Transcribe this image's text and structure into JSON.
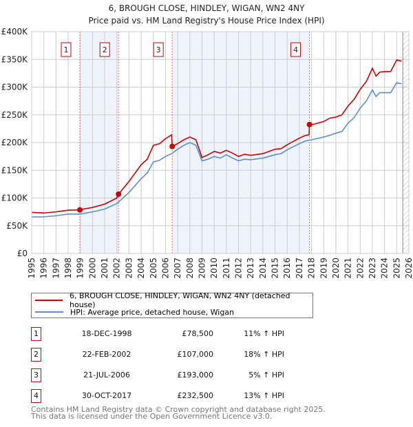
{
  "chart_data": {
    "type": "line",
    "title": "6, BROUGH CLOSE, HINDLEY, WIGAN, WN2 4NY",
    "subtitle": "Price paid vs. HM Land Registry's House Price Index (HPI)",
    "xlim": [
      1995,
      2026
    ],
    "ylim": [
      0,
      400000
    ],
    "x_ticks": [
      "1995",
      "1996",
      "1997",
      "1998",
      "1999",
      "2000",
      "2001",
      "2002",
      "2003",
      "2004",
      "2005",
      "2006",
      "2007",
      "2008",
      "2009",
      "2010",
      "2011",
      "2012",
      "2013",
      "2014",
      "2015",
      "2016",
      "2017",
      "2018",
      "2019",
      "2020",
      "2021",
      "2022",
      "2023",
      "2024",
      "2025",
      "2026"
    ],
    "y_ticks": [
      {
        "v": 0,
        "label": "£0"
      },
      {
        "v": 50000,
        "label": "£50K"
      },
      {
        "v": 100000,
        "label": "£100K"
      },
      {
        "v": 150000,
        "label": "£150K"
      },
      {
        "v": 200000,
        "label": "£200K"
      },
      {
        "v": 250000,
        "label": "£250K"
      },
      {
        "v": 300000,
        "label": "£300K"
      },
      {
        "v": 350000,
        "label": "£350K"
      },
      {
        "v": 400000,
        "label": "£400K"
      }
    ],
    "grid": true,
    "series": [
      {
        "name": "6, BROUGH CLOSE, HINDLEY, WIGAN, WN2 4NY (detached house)",
        "color": "#cc0000",
        "x": [
          1995,
          1996,
          1997,
          1998,
          1998.96,
          1999,
          2000,
          2001,
          2002,
          2002.14,
          2003,
          2004,
          2004.5,
          2005,
          2005.5,
          2006,
          2006.5,
          2006.55,
          2007,
          2007.5,
          2008,
          2008.5,
          2009,
          2009.5,
          2010,
          2010.5,
          2011,
          2011.5,
          2012,
          2012.5,
          2013,
          2014,
          2015,
          2015.5,
          2016,
          2017,
          2017.5,
          2017.8,
          2017.83,
          2018,
          2019,
          2019.5,
          2020,
          2020.5,
          2021,
          2021.5,
          2022,
          2022.5,
          2023,
          2023.3,
          2023.6,
          2024,
          2024.5,
          2025,
          2025.4
        ],
        "y": [
          74000,
          73000,
          75000,
          78000,
          78500,
          79000,
          83000,
          89000,
          100000,
          107000,
          130000,
          160000,
          170000,
          195000,
          198000,
          207000,
          214000,
          193000,
          198000,
          205000,
          210000,
          205000,
          173000,
          178000,
          184000,
          181000,
          186000,
          181000,
          175000,
          179000,
          177000,
          180000,
          188000,
          189000,
          196000,
          208000,
          213000,
          214000,
          232500,
          232000,
          238000,
          244000,
          246000,
          250000,
          266000,
          278000,
          296000,
          310000,
          334000,
          320000,
          327000,
          328000,
          328000,
          349000,
          347000
        ]
      },
      {
        "name": "HPI: Average price, detached house, Wigan",
        "color": "#5b8fd4",
        "x": [
          1995,
          1996,
          1997,
          1998,
          1999,
          2000,
          2001,
          2002,
          2003,
          2004,
          2004.5,
          2005,
          2005.5,
          2006,
          2006.5,
          2007,
          2007.5,
          2008,
          2008.5,
          2009,
          2009.5,
          2010,
          2010.5,
          2011,
          2011.5,
          2012,
          2012.5,
          2013,
          2014,
          2015,
          2015.5,
          2016,
          2017,
          2017.5,
          2018,
          2019,
          2019.5,
          2020,
          2020.5,
          2021,
          2021.5,
          2022,
          2022.5,
          2023,
          2023.3,
          2023.6,
          2024,
          2024.5,
          2025,
          2025.4
        ],
        "y": [
          66000,
          66000,
          68000,
          71000,
          71000,
          75000,
          80000,
          90000,
          110000,
          135000,
          145000,
          165000,
          168000,
          175000,
          180000,
          188000,
          195000,
          200000,
          195000,
          167000,
          170000,
          175000,
          172000,
          178000,
          172000,
          167000,
          170000,
          169000,
          172000,
          178000,
          180000,
          187000,
          198000,
          203000,
          205000,
          210000,
          213000,
          217000,
          220000,
          235000,
          245000,
          262000,
          275000,
          295000,
          283000,
          290000,
          290000,
          290000,
          308000,
          306000
        ]
      }
    ],
    "sales": [
      {
        "n": "1",
        "x": 1998.96,
        "y": 78500,
        "date": "18-DEC-1998",
        "price": "£78,500",
        "hpi": "11% ↑ HPI"
      },
      {
        "n": "2",
        "x": 2002.14,
        "y": 107000,
        "date": "22-FEB-2002",
        "price": "£107,000",
        "hpi": "18% ↑ HPI"
      },
      {
        "n": "3",
        "x": 2006.55,
        "y": 193000,
        "date": "21-JUL-2006",
        "price": "£193,000",
        "hpi": "5% ↑ HPI"
      },
      {
        "n": "4",
        "x": 2017.83,
        "y": 232500,
        "date": "30-OCT-2017",
        "price": "£232,500",
        "hpi": "13% ↑ HPI"
      }
    ],
    "shaded_ranges": [
      [
        1998.96,
        2002.14
      ],
      [
        2006.55,
        2017.83
      ]
    ],
    "forecast_from": 2025.5,
    "legend_position": "below"
  },
  "footer": {
    "line1": "Contains HM Land Registry data © Crown copyright and database right 2025.",
    "line2": "This data is licensed under the Open Government Licence v3.0."
  }
}
